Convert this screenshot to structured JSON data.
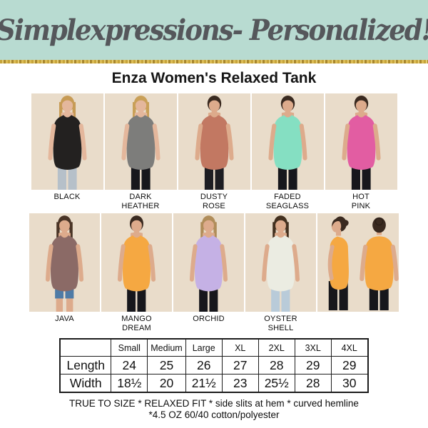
{
  "banner": {
    "text": "Simplexpressions- Personalized!",
    "bg_color": "#b8dbd1",
    "text_color": "#55575b",
    "glitter_colors": [
      "#c7a43a",
      "#e6cd74",
      "#a8862c",
      "#dcbc55"
    ]
  },
  "title": "Enza Women's Relaxed Tank",
  "photo_bg": "#e9dcca",
  "figure_defaults": {
    "skin": "#ddab8c"
  },
  "colors_row1": [
    {
      "label": "BLACK",
      "tank": "#232120",
      "hair": "#c79b55",
      "hairstyle": "long",
      "skin": "#e4b79c",
      "pants": "#b6c0c9"
    },
    {
      "label": "DARK\nHEATHER",
      "tank": "#7d7d7b",
      "hair": "#c9a058",
      "hairstyle": "long",
      "skin": "#e4b79c",
      "pants": "#17171c"
    },
    {
      "label": "DUSTY\nROSE",
      "tank": "#c27862",
      "hair": "#3a2a20",
      "hairstyle": "updo",
      "pants": "#1d1d22"
    },
    {
      "label": "FADED\nSEAGLASS",
      "tank": "#85dfc2",
      "hair": "#3a2a20",
      "hairstyle": "updo",
      "pants": "#17171c"
    },
    {
      "label": "HOT\nPINK",
      "tank": "#e25da2",
      "hair": "#3a2a20",
      "hairstyle": "updo",
      "pants": "#17171c"
    }
  ],
  "colors_row2": [
    {
      "label": "JAVA",
      "tank": "#8b6a66",
      "hair": "#4a3426",
      "hairstyle": "long",
      "pants": "#4f7ba6",
      "pants_style": "shorts"
    },
    {
      "label": "MANGO\nDREAM",
      "tank": "#f5a842",
      "hair": "#3a2a20",
      "hairstyle": "updo",
      "pants": "#17171c"
    },
    {
      "label": "ORCHID",
      "tank": "#c5b1e5",
      "hair": "#b08d5a",
      "hairstyle": "long",
      "pants": "#17171c"
    },
    {
      "label": "OYSTER\nSHELL",
      "tank": "#ebece2",
      "hair": "#43301f",
      "hairstyle": "long",
      "pants": "#b9cbd9"
    },
    {
      "label": "",
      "tank": "#f5a842",
      "hair": "#3a2a20",
      "hairstyle": "updo",
      "pants": "#17171c",
      "views": [
        "side",
        "back"
      ]
    }
  ],
  "size_table": {
    "headers": [
      "",
      "Small",
      "Medium",
      "Large",
      "XL",
      "2XL",
      "3XL",
      "4XL"
    ],
    "rows": [
      {
        "label": "Length",
        "values": [
          "24",
          "25",
          "26",
          "27",
          "28",
          "29",
          "29"
        ]
      },
      {
        "label": "Width",
        "values": [
          "18½",
          "20",
          "21½",
          "23",
          "25½",
          "28",
          "30"
        ]
      }
    ]
  },
  "chart_data": {
    "type": "table",
    "title": "Enza Women's Relaxed Tank size chart",
    "columns": [
      "Small",
      "Medium",
      "Large",
      "XL",
      "2XL",
      "3XL",
      "4XL"
    ],
    "rows": [
      {
        "name": "Length",
        "values": [
          24,
          25,
          26,
          27,
          28,
          29,
          29
        ]
      },
      {
        "name": "Width",
        "values": [
          18.5,
          20,
          21.5,
          23,
          25.5,
          28,
          30
        ]
      }
    ]
  },
  "footer": {
    "line1": "TRUE TO SIZE * RELAXED FIT * side slits at hem * curved hemline",
    "line2": "*4.5 OZ 60/40 cotton/polyester"
  }
}
